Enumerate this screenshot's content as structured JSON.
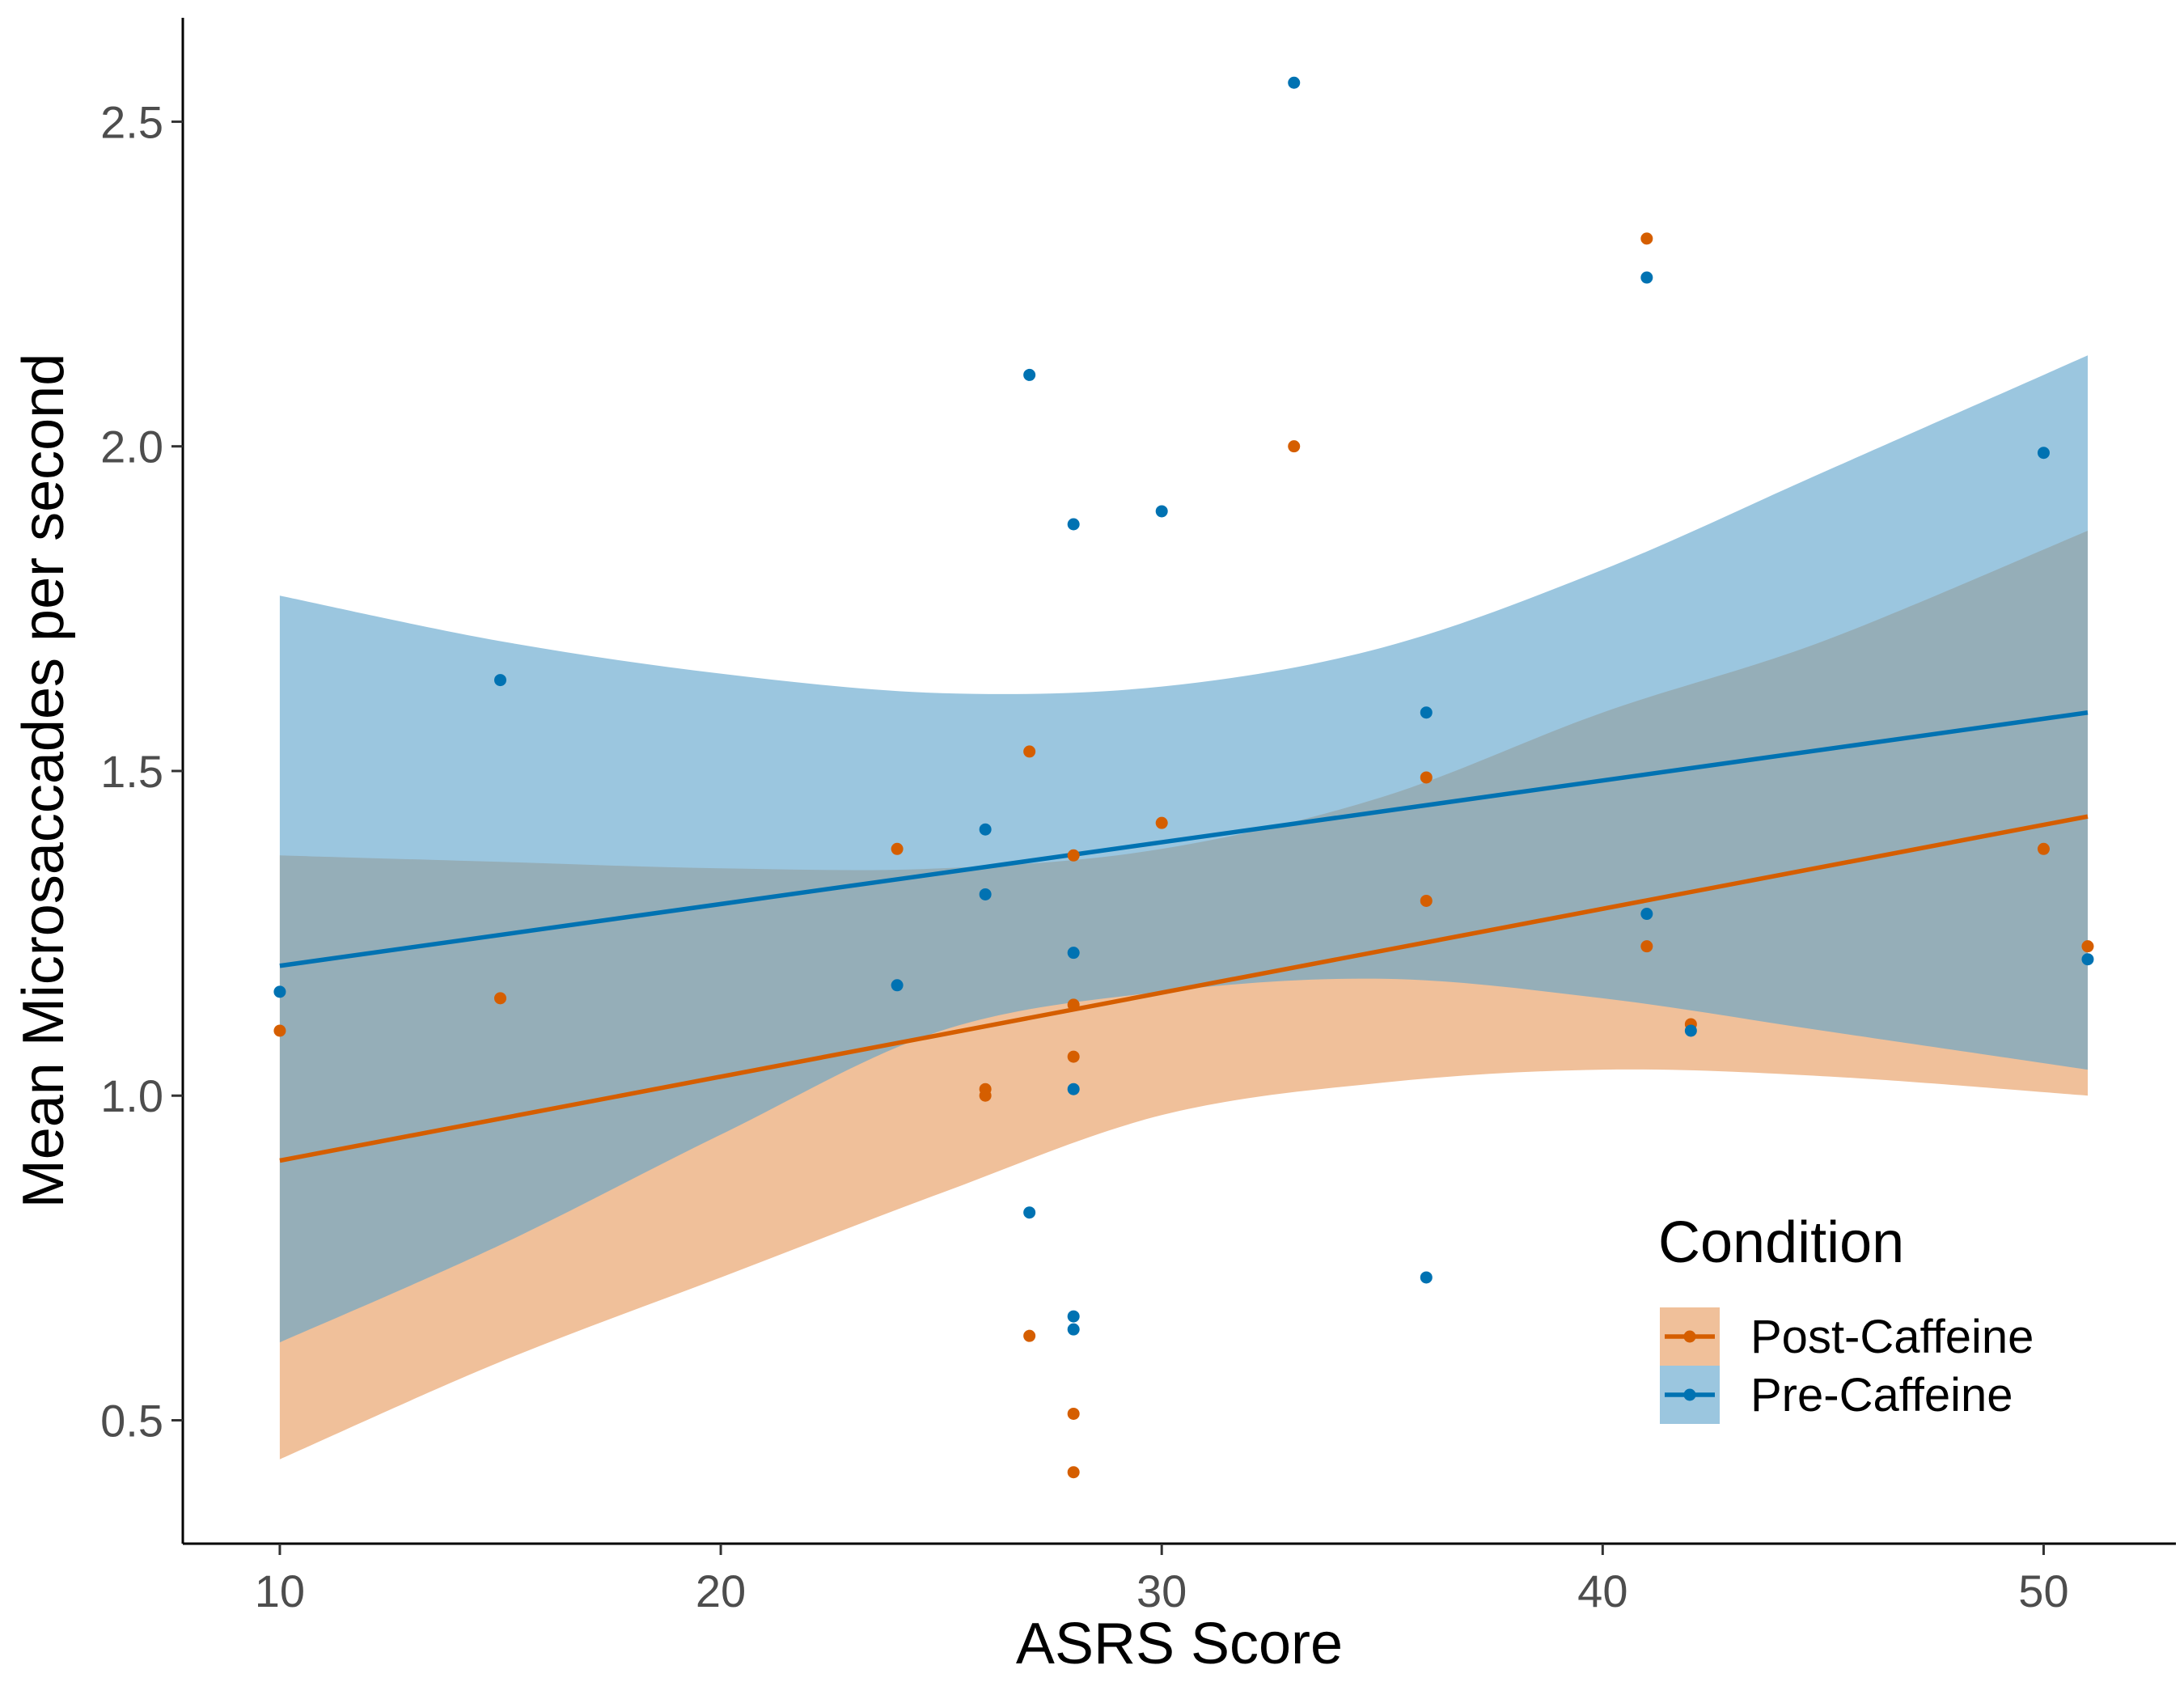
{
  "chart_data": {
    "type": "scatter",
    "xlabel": "ASRS Score",
    "ylabel": "Mean Microsaccades per second",
    "xlim": [
      7.8,
      53.0
    ],
    "ylim": [
      0.31,
      2.66
    ],
    "xticks": [
      10,
      20,
      30,
      40,
      50
    ],
    "yticks": [
      0.5,
      1.0,
      1.5,
      2.0,
      2.5
    ],
    "x_tick_labels": [
      "10",
      "20",
      "30",
      "40",
      "50"
    ],
    "y_tick_labels": [
      "0.5",
      "1.0",
      "1.5",
      "2.0",
      "2.5"
    ],
    "grid": false,
    "legend": {
      "title": "Condition",
      "position": "bottom-right",
      "entries": [
        "Post-Caffeine",
        "Pre-Caffeine"
      ]
    },
    "series": [
      {
        "name": "Post-Caffeine",
        "color": "#D55E00",
        "band_color": "#E69A5C",
        "points": [
          {
            "x": 10,
            "y": 1.1
          },
          {
            "x": 15,
            "y": 1.15
          },
          {
            "x": 24,
            "y": 1.38
          },
          {
            "x": 26,
            "y": 1.01
          },
          {
            "x": 26,
            "y": 1.0
          },
          {
            "x": 27,
            "y": 1.53
          },
          {
            "x": 27,
            "y": 0.63
          },
          {
            "x": 28,
            "y": 1.37
          },
          {
            "x": 28,
            "y": 1.14
          },
          {
            "x": 28,
            "y": 1.06
          },
          {
            "x": 28,
            "y": 0.51
          },
          {
            "x": 28,
            "y": 0.42
          },
          {
            "x": 30,
            "y": 1.42
          },
          {
            "x": 33,
            "y": 2.0
          },
          {
            "x": 36,
            "y": 1.49
          },
          {
            "x": 36,
            "y": 1.3
          },
          {
            "x": 41,
            "y": 2.32
          },
          {
            "x": 41,
            "y": 1.23
          },
          {
            "x": 42,
            "y": 1.11
          },
          {
            "x": 50,
            "y": 1.38
          },
          {
            "x": 51,
            "y": 1.23
          }
        ],
        "fit": {
          "x": [
            10,
            51
          ],
          "y": [
            0.9,
            1.43
          ]
        },
        "ci_band": [
          {
            "x": 10,
            "lo": 0.44,
            "hi": 1.37
          },
          {
            "x": 15,
            "lo": 0.59,
            "hi": 1.36
          },
          {
            "x": 20,
            "lo": 0.72,
            "hi": 1.35
          },
          {
            "x": 25,
            "lo": 0.85,
            "hi": 1.35
          },
          {
            "x": 30,
            "lo": 0.97,
            "hi": 1.38
          },
          {
            "x": 35,
            "lo": 1.02,
            "hi": 1.46
          },
          {
            "x": 40,
            "lo": 1.04,
            "hi": 1.59
          },
          {
            "x": 45,
            "lo": 1.03,
            "hi": 1.7
          },
          {
            "x": 51,
            "lo": 1.0,
            "hi": 1.87
          }
        ]
      },
      {
        "name": "Pre-Caffeine",
        "color": "#0072B2",
        "band_color": "#5EA3CC",
        "points": [
          {
            "x": 10,
            "y": 1.16
          },
          {
            "x": 15,
            "y": 1.64
          },
          {
            "x": 24,
            "y": 1.17
          },
          {
            "x": 26,
            "y": 1.41
          },
          {
            "x": 26,
            "y": 1.31
          },
          {
            "x": 27,
            "y": 2.11
          },
          {
            "x": 27,
            "y": 0.82
          },
          {
            "x": 28,
            "y": 1.88
          },
          {
            "x": 28,
            "y": 1.22
          },
          {
            "x": 28,
            "y": 1.01
          },
          {
            "x": 28,
            "y": 0.66
          },
          {
            "x": 28,
            "y": 0.64
          },
          {
            "x": 30,
            "y": 1.9
          },
          {
            "x": 33,
            "y": 2.56
          },
          {
            "x": 36,
            "y": 1.59
          },
          {
            "x": 36,
            "y": 0.72
          },
          {
            "x": 41,
            "y": 2.26
          },
          {
            "x": 41,
            "y": 1.28
          },
          {
            "x": 42,
            "y": 1.1
          },
          {
            "x": 50,
            "y": 1.99
          },
          {
            "x": 51,
            "y": 1.21
          }
        ],
        "fit": {
          "x": [
            10,
            51
          ],
          "y": [
            1.2,
            1.59
          ]
        },
        "ci_band": [
          {
            "x": 10,
            "lo": 0.62,
            "hi": 1.77
          },
          {
            "x": 15,
            "lo": 0.77,
            "hi": 1.7
          },
          {
            "x": 20,
            "lo": 0.94,
            "hi": 1.65
          },
          {
            "x": 25,
            "lo": 1.1,
            "hi": 1.62
          },
          {
            "x": 30,
            "lo": 1.16,
            "hi": 1.63
          },
          {
            "x": 35,
            "lo": 1.18,
            "hi": 1.69
          },
          {
            "x": 40,
            "lo": 1.15,
            "hi": 1.81
          },
          {
            "x": 45,
            "lo": 1.1,
            "hi": 1.96
          },
          {
            "x": 51,
            "lo": 1.04,
            "hi": 2.14
          }
        ]
      }
    ]
  }
}
